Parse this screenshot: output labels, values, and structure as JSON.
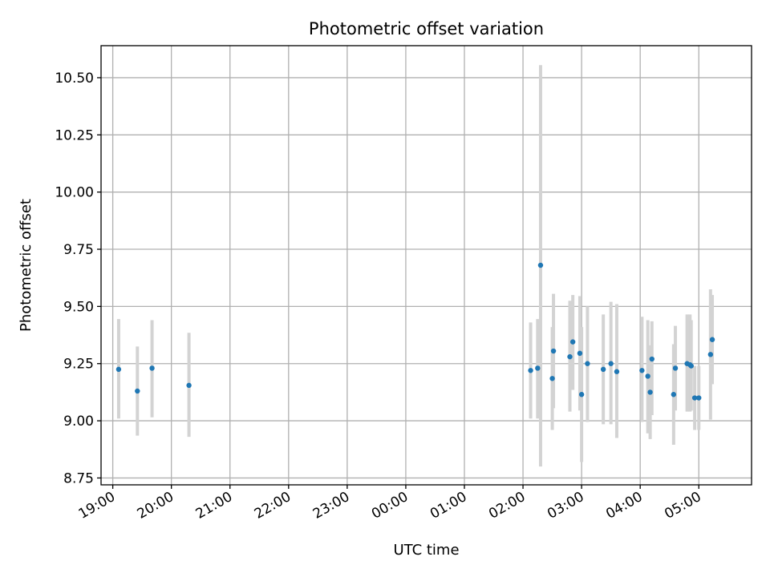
{
  "chart_data": {
    "type": "scatter",
    "title": "Photometric offset variation",
    "xlabel": "UTC time",
    "ylabel": "Photometric offset",
    "x_unit": "UTC time of day (hours; values past 24 are after midnight)",
    "xlim": [
      18.8,
      29.9
    ],
    "ylim": [
      8.72,
      10.64
    ],
    "x_ticks": [
      19,
      20,
      21,
      22,
      23,
      24,
      25,
      26,
      27,
      28,
      29
    ],
    "x_tick_labels": [
      "19:00",
      "20:00",
      "21:00",
      "22:00",
      "23:00",
      "00:00",
      "01:00",
      "02:00",
      "03:00",
      "04:00",
      "05:00"
    ],
    "y_ticks": [
      8.75,
      9.0,
      9.25,
      9.5,
      9.75,
      10.0,
      10.25,
      10.5
    ],
    "y_tick_labels": [
      "8.75",
      "9.00",
      "9.25",
      "9.50",
      "9.75",
      "10.00",
      "10.25",
      "10.50"
    ],
    "grid": true,
    "marker_color": "#1f77b4",
    "errorbar_color": "#d3d3d3",
    "points": [
      {
        "x": 19.1,
        "y": 9.225,
        "lo": 9.01,
        "hi": 9.445
      },
      {
        "x": 19.42,
        "y": 9.13,
        "lo": 8.935,
        "hi": 9.325
      },
      {
        "x": 19.67,
        "y": 9.23,
        "lo": 9.015,
        "hi": 9.44
      },
      {
        "x": 20.3,
        "y": 9.155,
        "lo": 8.93,
        "hi": 9.385
      },
      {
        "x": 26.13,
        "y": 9.22,
        "lo": 9.01,
        "hi": 9.43
      },
      {
        "x": 26.25,
        "y": 9.23,
        "lo": 9.01,
        "hi": 9.445
      },
      {
        "x": 26.3,
        "y": 9.68,
        "lo": 8.8,
        "hi": 10.555
      },
      {
        "x": 26.5,
        "y": 9.185,
        "lo": 8.96,
        "hi": 9.41
      },
      {
        "x": 26.52,
        "y": 9.305,
        "lo": 9.055,
        "hi": 9.555
      },
      {
        "x": 26.8,
        "y": 9.28,
        "lo": 9.04,
        "hi": 9.525
      },
      {
        "x": 26.85,
        "y": 9.345,
        "lo": 9.135,
        "hi": 9.55
      },
      {
        "x": 26.97,
        "y": 9.295,
        "lo": 9.045,
        "hi": 9.545
      },
      {
        "x": 27.0,
        "y": 9.115,
        "lo": 8.82,
        "hi": 9.41
      },
      {
        "x": 27.1,
        "y": 9.25,
        "lo": 8.995,
        "hi": 9.5
      },
      {
        "x": 27.37,
        "y": 9.225,
        "lo": 8.985,
        "hi": 9.465
      },
      {
        "x": 27.5,
        "y": 9.25,
        "lo": 8.985,
        "hi": 9.52
      },
      {
        "x": 27.6,
        "y": 9.215,
        "lo": 8.925,
        "hi": 9.51
      },
      {
        "x": 28.03,
        "y": 9.22,
        "lo": 8.995,
        "hi": 9.455
      },
      {
        "x": 28.13,
        "y": 9.195,
        "lo": 8.945,
        "hi": 9.44
      },
      {
        "x": 28.17,
        "y": 9.125,
        "lo": 8.92,
        "hi": 9.33
      },
      {
        "x": 28.2,
        "y": 9.27,
        "lo": 9.025,
        "hi": 9.435
      },
      {
        "x": 28.57,
        "y": 9.115,
        "lo": 8.895,
        "hi": 9.335
      },
      {
        "x": 28.6,
        "y": 9.23,
        "lo": 9.045,
        "hi": 9.415
      },
      {
        "x": 28.8,
        "y": 9.25,
        "lo": 9.04,
        "hi": 9.465
      },
      {
        "x": 28.85,
        "y": 9.245,
        "lo": 9.04,
        "hi": 9.465
      },
      {
        "x": 28.87,
        "y": 9.24,
        "lo": 9.045,
        "hi": 9.44
      },
      {
        "x": 28.93,
        "y": 9.1,
        "lo": 8.96,
        "hi": 9.24
      },
      {
        "x": 29.0,
        "y": 9.1,
        "lo": 8.96,
        "hi": 9.24
      },
      {
        "x": 29.2,
        "y": 9.29,
        "lo": 9.005,
        "hi": 9.575
      },
      {
        "x": 29.23,
        "y": 9.355,
        "lo": 9.16,
        "hi": 9.55
      }
    ]
  }
}
